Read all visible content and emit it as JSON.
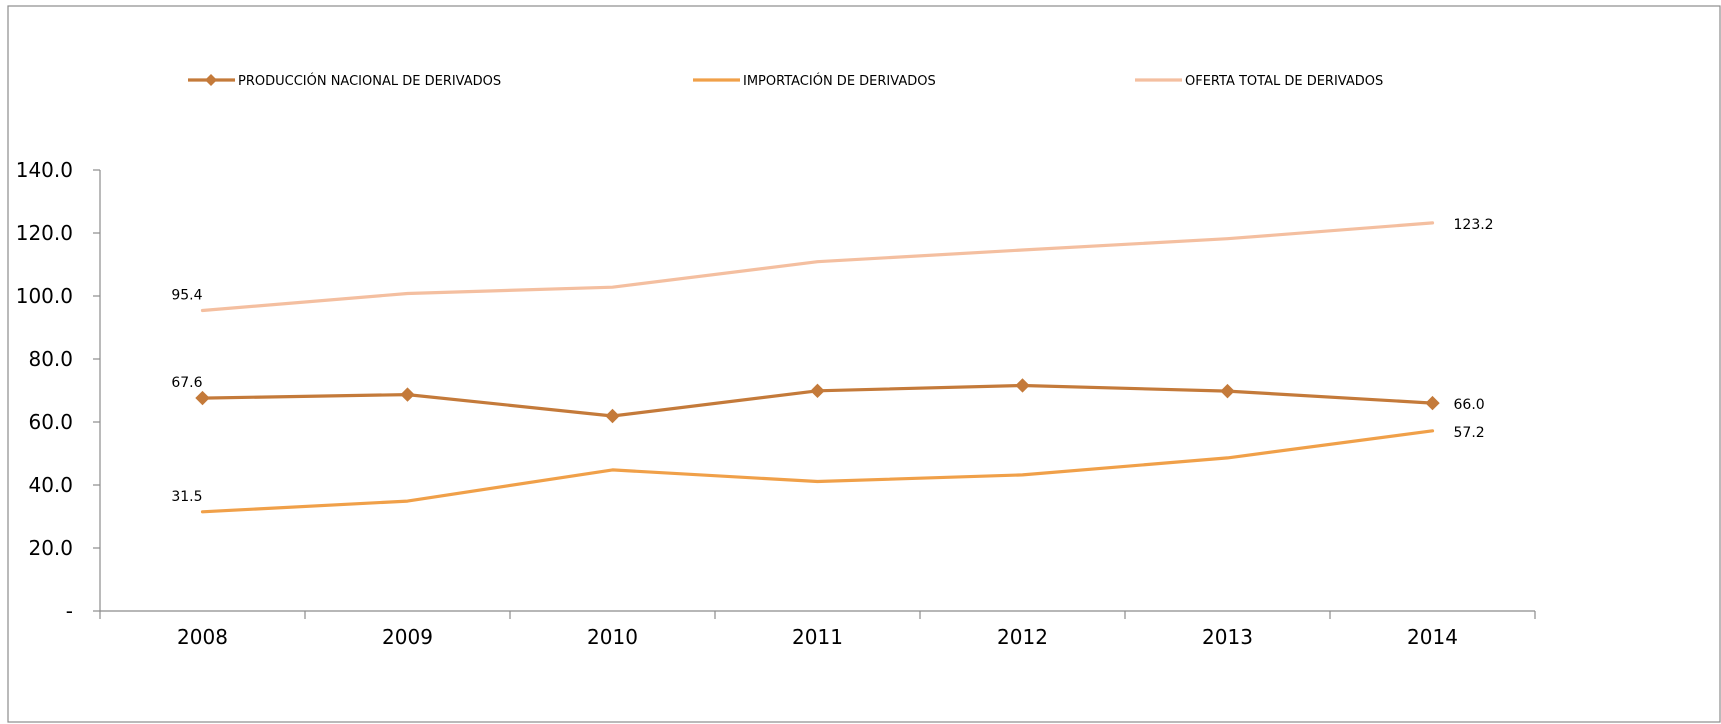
{
  "chart_data": {
    "type": "line",
    "title": "",
    "xlabel": "",
    "ylabel": "",
    "categories": [
      "2008",
      "2009",
      "2010",
      "2011",
      "2012",
      "2013",
      "2014"
    ],
    "ylim": [
      0,
      140
    ],
    "yticks": [
      0,
      20,
      40,
      60,
      80,
      100,
      120,
      140
    ],
    "ytick_labels": [
      "-",
      "20.0",
      "40.0",
      "60.0",
      "80.0",
      "100.0",
      "120.0",
      "140.0"
    ],
    "grid": false,
    "legend_position": "top",
    "series": [
      {
        "name": "PRODUCCIÓN NACIONAL DE DERIVADOS",
        "values": [
          67.6,
          68.7,
          61.9,
          69.9,
          71.6,
          69.8,
          66.0
        ],
        "color": "#c47a3a",
        "marker": "diamond",
        "labels": [
          "67.6",
          "",
          "",
          "",
          "",
          "",
          "66.0"
        ]
      },
      {
        "name": "IMPORTACIÓN DE DERIVADOS",
        "values": [
          31.5,
          34.9,
          44.8,
          41.1,
          43.2,
          48.6,
          57.2
        ],
        "color": "#f0a049",
        "marker": "none",
        "labels": [
          "31.5",
          "",
          "",
          "",
          "",
          "",
          "57.2"
        ]
      },
      {
        "name": "OFERTA TOTAL DE DERIVADOS",
        "values": [
          95.4,
          100.8,
          102.8,
          110.9,
          114.6,
          118.2,
          123.2
        ],
        "color": "#f4bfa0",
        "marker": "none",
        "labels": [
          "95.4",
          "",
          "",
          "",
          "",
          "",
          "123.2"
        ]
      }
    ]
  }
}
